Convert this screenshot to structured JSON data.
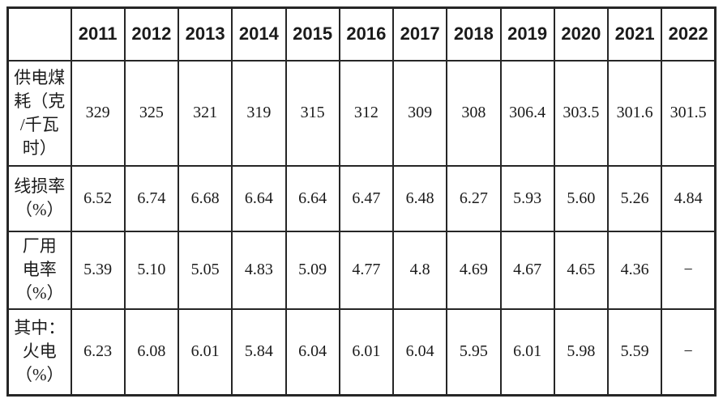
{
  "table": {
    "corner_label": "",
    "years": [
      "2011",
      "2012",
      "2013",
      "2014",
      "2015",
      "2016",
      "2017",
      "2018",
      "2019",
      "2020",
      "2021",
      "2022"
    ],
    "rows": [
      {
        "label": "供电煤\n耗（克\n/千瓦\n时）",
        "label_plain": "供电煤耗（克/千瓦时）",
        "values": [
          "329",
          "325",
          "321",
          "319",
          "315",
          "312",
          "309",
          "308",
          "306.4",
          "303.5",
          "301.6",
          "301.5"
        ]
      },
      {
        "label": "线损率\n（%）",
        "label_plain": "线损率（%）",
        "values": [
          "6.52",
          "6.74",
          "6.68",
          "6.64",
          "6.64",
          "6.47",
          "6.48",
          "6.27",
          "5.93",
          "5.60",
          "5.26",
          "4.84"
        ]
      },
      {
        "label": "厂用\n电率\n（%）",
        "label_plain": "厂用电率（%）",
        "values": [
          "5.39",
          "5.10",
          "5.05",
          "4.83",
          "5.09",
          "4.77",
          "4.8",
          "4.69",
          "4.67",
          "4.65",
          "4.36",
          "−"
        ]
      },
      {
        "label": "其中：\n火电\n（%）",
        "label_plain": "其中：火电（%）",
        "values": [
          "6.23",
          "6.08",
          "6.01",
          "5.84",
          "6.04",
          "6.01",
          "6.04",
          "5.95",
          "6.01",
          "5.98",
          "5.59",
          "−"
        ]
      }
    ],
    "colors": {
      "border": "#262626",
      "text": "#1b1b1b",
      "background": "#ffffff"
    }
  }
}
